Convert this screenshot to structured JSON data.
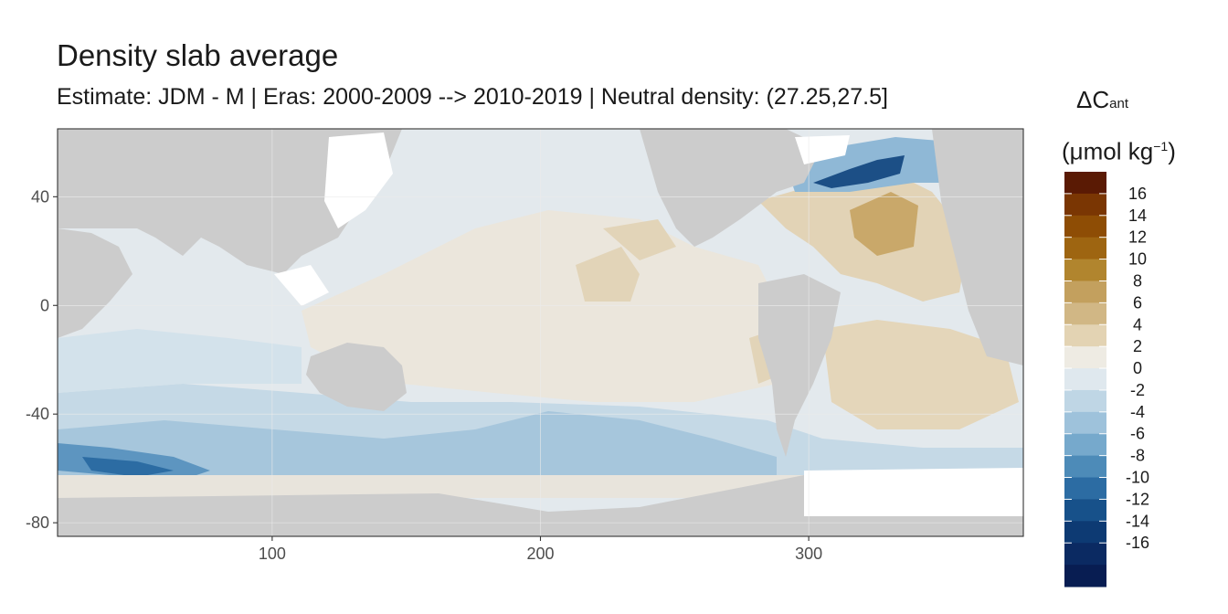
{
  "chart_data": {
    "type": "heatmap",
    "title": "Density slab average",
    "subtitle": "Estimate: JDM - M | Eras: 2000-2009 --> 2010-2019 | Neutral density: (27.25,27.5]",
    "x_ticks": [
      100,
      200,
      300
    ],
    "y_ticks": [
      40,
      0,
      -40,
      -80
    ],
    "xlim": [
      20,
      380
    ],
    "ylim": [
      -85,
      65
    ],
    "legend": {
      "title_main": "ΔC",
      "title_sub": "ant",
      "unit_open": "(μmol kg",
      "unit_sup": "−1",
      "unit_close": ")",
      "breaks": [
        16,
        14,
        12,
        10,
        8,
        6,
        4,
        2,
        0,
        -2,
        -4,
        -6,
        -8,
        -10,
        -12,
        -14,
        -16
      ],
      "colors": [
        "#5a1a04",
        "#7a3603",
        "#8e4d05",
        "#9e6511",
        "#b1852e",
        "#c3a05e",
        "#d1b785",
        "#e3d3b3",
        "#eeebe3",
        "#dfe8ee",
        "#bfd6e5",
        "#9ec2db",
        "#76a9cc",
        "#4d8bb8",
        "#2c6ca3",
        "#17518a",
        "#0d3a73",
        "#0b2a62",
        "#081d52"
      ],
      "placement": "right"
    },
    "colors": {
      "land": "#cccccc",
      "missing": "#ffffff",
      "frame": "#333333"
    }
  }
}
